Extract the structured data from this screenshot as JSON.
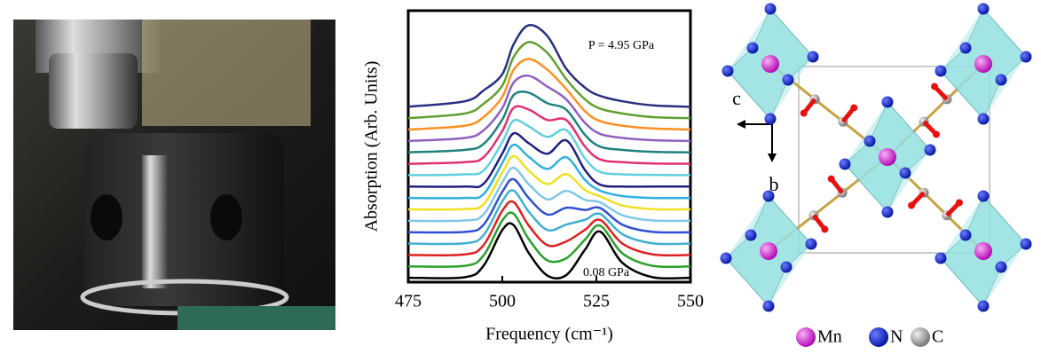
{
  "chart_data": {
    "type": "line",
    "ylabel": "Absorption (Arb. Units)",
    "xlabel": "Frequency (cm⁻¹)",
    "annotations": [
      "P = 4.95 GPa",
      "0.08 GPa"
    ],
    "xlim": [
      475,
      550
    ],
    "xticks": [
      475,
      500,
      525,
      550
    ],
    "ylim": [
      0,
      10
    ],
    "x": [
      475,
      490,
      495,
      500,
      503,
      507,
      512,
      517,
      522,
      526,
      532,
      540,
      550
    ],
    "series": [
      {
        "color": "#000000",
        "values": [
          0.16,
          0.18,
          0.6,
          1.92,
          2.1,
          1.08,
          0.24,
          0.26,
          1.2,
          1.86,
          0.7,
          0.18,
          0.16
        ]
      },
      {
        "color": "#2ca02c",
        "values": [
          0.58,
          0.6,
          0.98,
          2.27,
          2.52,
          1.59,
          0.8,
          0.88,
          1.57,
          2.08,
          1.05,
          0.6,
          0.58
        ]
      },
      {
        "color": "#e02020",
        "values": [
          1,
          1.02,
          1.36,
          2.63,
          2.95,
          2.09,
          1.36,
          1.5,
          1.93,
          2.29,
          1.41,
          1.02,
          1
        ]
      },
      {
        "color": "#40b0d0",
        "values": [
          1.42,
          1.43,
          1.73,
          2.98,
          3.37,
          2.6,
          1.92,
          2.12,
          2.3,
          2.51,
          1.76,
          1.43,
          1.42
        ]
      },
      {
        "color": "#3050d0",
        "values": [
          1.84,
          1.85,
          2.11,
          3.33,
          3.79,
          3.1,
          2.49,
          2.74,
          2.66,
          2.73,
          2.11,
          1.85,
          1.84
        ]
      },
      {
        "color": "#80c8e8",
        "values": [
          2.26,
          2.27,
          2.49,
          3.68,
          4.21,
          3.61,
          3.05,
          3.36,
          3.03,
          2.94,
          2.46,
          2.27,
          2.26
        ]
      },
      {
        "color": "#f0e020",
        "values": [
          2.68,
          2.69,
          2.87,
          4.04,
          4.64,
          4.11,
          3.61,
          3.98,
          3.39,
          3.16,
          2.82,
          2.69,
          2.68
        ]
      },
      {
        "color": "#30b0e0",
        "values": [
          3.1,
          3.1,
          3.24,
          4.39,
          5.06,
          4.62,
          4.17,
          4.6,
          3.76,
          3.37,
          3.17,
          3.1,
          3.1
        ]
      },
      {
        "color": "#202080",
        "values": [
          3.52,
          3.52,
          3.62,
          4.74,
          5.48,
          5.12,
          4.73,
          5.22,
          4.12,
          3.59,
          3.52,
          3.52,
          3.52
        ]
      },
      {
        "color": "#60d0e0",
        "values": [
          3.94,
          3.97,
          4.11,
          5.16,
          5.95,
          5.74,
          5.35,
          5.6,
          4.55,
          4.06,
          3.97,
          3.95,
          3.94
        ]
      },
      {
        "color": "#e03070",
        "values": [
          4.36,
          4.42,
          4.6,
          5.57,
          6.42,
          6.36,
          5.97,
          5.97,
          4.99,
          4.52,
          4.42,
          4.37,
          4.36
        ]
      },
      {
        "color": "#208080",
        "values": [
          4.78,
          4.87,
          5.09,
          5.99,
          6.89,
          6.98,
          6.59,
          6.35,
          5.42,
          4.99,
          4.87,
          4.8,
          4.78
        ]
      },
      {
        "color": "#9060c0",
        "values": [
          5.2,
          5.31,
          5.59,
          6.41,
          7.35,
          7.6,
          7.2,
          6.73,
          5.86,
          5.46,
          5.31,
          5.23,
          5.2
        ]
      },
      {
        "color": "#ff9020",
        "values": [
          5.62,
          5.76,
          6.08,
          6.83,
          7.82,
          8.22,
          7.82,
          7.11,
          6.29,
          5.93,
          5.76,
          5.66,
          5.62
        ]
      },
      {
        "color": "#60a030",
        "values": [
          6.04,
          6.21,
          6.57,
          7.24,
          8.29,
          8.84,
          8.44,
          7.48,
          6.73,
          6.39,
          6.21,
          6.08,
          6.04
        ]
      },
      {
        "color": "#283080",
        "values": [
          6.46,
          6.66,
          7.06,
          7.66,
          8.76,
          9.46,
          9.06,
          7.86,
          7.16,
          6.86,
          6.66,
          6.51,
          6.46
        ]
      }
    ]
  },
  "structure": {
    "axes": [
      "c",
      "b"
    ],
    "legend": [
      "Mn",
      "N",
      "C"
    ]
  }
}
